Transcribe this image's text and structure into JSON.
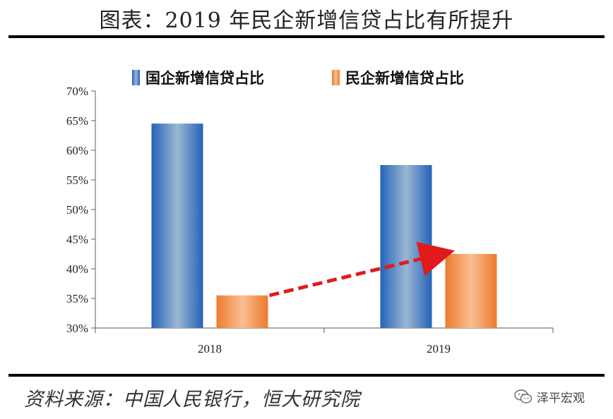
{
  "header": {
    "title": "图表：2019 年民企新增信贷占比有所提升"
  },
  "footer": {
    "source": "资料来源：中国人民银行，恒大研究院",
    "brand": "泽平宏观"
  },
  "colors": {
    "blue": "#2f6fbf",
    "orange": "#f0823a",
    "arrow": "#e31a1c"
  },
  "chart_data": {
    "type": "bar",
    "categories": [
      "2018",
      "2019"
    ],
    "series": [
      {
        "name": "国企新增信贷占比",
        "values": [
          64.5,
          57.5
        ]
      },
      {
        "name": "民企新增信贷占比",
        "values": [
          35.5,
          42.5
        ]
      }
    ],
    "ylim": [
      30,
      70
    ],
    "yticks": [
      "30%",
      "35%",
      "40%",
      "45%",
      "50%",
      "55%",
      "60%",
      "65%",
      "70%"
    ],
    "legend_position": "top",
    "annotation": "red dashed arrow from 2018 民企 bar to 2019 民企 bar"
  }
}
